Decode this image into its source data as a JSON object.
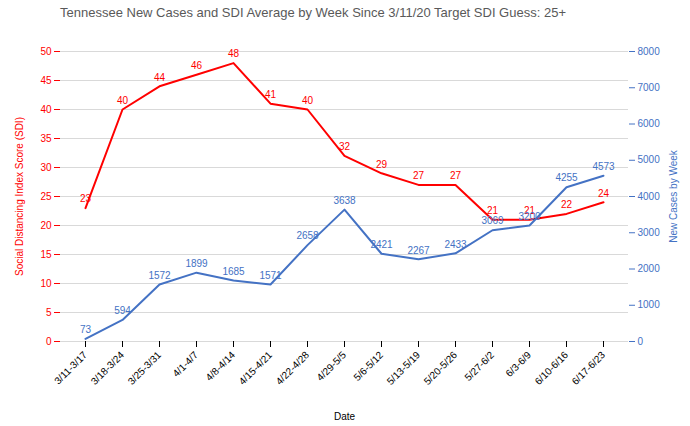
{
  "chart_data": {
    "type": "line",
    "title": "Tennessee New Cases and SDI Average by Week Since 3/11/20 Target SDI Guess: 25+",
    "xlabel": "Date",
    "ylabel": "Social Distancing Index Score (SDI)",
    "y2label": "New Cases by Week",
    "categories": [
      "3/11-3/17",
      "3/18-3/24",
      "3/25-3/31",
      "4/1-4/7",
      "4/8-4/14",
      "4/15-4/21",
      "4/22-4/28",
      "4/29-5/5",
      "5/6-5/12",
      "5/13-5/19",
      "5/20-5/26",
      "5/27-6/2",
      "6/3-6/9",
      "6/10-6/16",
      "6/17-6/23"
    ],
    "series": [
      {
        "color": "#ff0000",
        "values": [
          23,
          40,
          44,
          46,
          48,
          41,
          40,
          32,
          29,
          27,
          27,
          21,
          21,
          22,
          24
        ]
      },
      {
        "color": "#4472c4",
        "axis": "y2",
        "values": [
          73,
          594,
          1572,
          1899,
          1685,
          1571,
          2658,
          3638,
          2421,
          2267,
          2433,
          3069,
          3200,
          4255,
          4573
        ]
      }
    ],
    "ylim": [
      0,
      50
    ],
    "yticks": [
      0,
      5,
      10,
      15,
      20,
      25,
      30,
      35,
      40,
      45,
      50
    ],
    "y2lim": [
      0,
      8000
    ],
    "y2ticks": [
      0,
      1000,
      2000,
      3000,
      4000,
      5000,
      6000,
      7000,
      8000
    ],
    "grid": true,
    "data_labels": true
  }
}
